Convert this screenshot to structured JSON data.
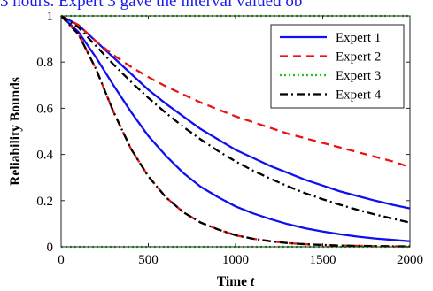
{
  "figure": {
    "clipped_caption": "3 hours. Expert 3 gave the interval valued ob"
  },
  "chart_data": {
    "type": "line",
    "xlabel": "Time t",
    "xlabel_parts": [
      "Time ",
      "t"
    ],
    "ylabel": "Reliability Bounds",
    "xlim": [
      0,
      2000
    ],
    "ylim": [
      0,
      1
    ],
    "xticks": [
      0,
      500,
      1000,
      1500,
      2000
    ],
    "yticks": [
      0,
      0.2,
      0.4,
      0.6,
      0.8,
      1
    ],
    "xtick_labels": [
      "0",
      "500",
      "1000",
      "1500",
      "2000"
    ],
    "ytick_labels": [
      "0",
      "0.2",
      "0.4",
      "0.6",
      "0.8",
      "1"
    ],
    "grid": false,
    "legend_position": "top-right",
    "x": [
      0,
      100,
      200,
      300,
      400,
      500,
      600,
      700,
      800,
      900,
      1000,
      1100,
      1200,
      1300,
      1400,
      1500,
      1600,
      1700,
      1800,
      1900,
      2000
    ],
    "series": [
      {
        "name": "Expert 1",
        "color": "#1010ee",
        "dash": "solid",
        "bound": "upper",
        "values": [
          1.0,
          0.96,
          0.89,
          0.82,
          0.75,
          0.68,
          0.62,
          0.565,
          0.51,
          0.465,
          0.42,
          0.385,
          0.35,
          0.32,
          0.29,
          0.265,
          0.24,
          0.22,
          0.2,
          0.182,
          0.166
        ]
      },
      {
        "name": "Expert 1",
        "color": "#1010ee",
        "dash": "solid",
        "bound": "lower",
        "values": [
          1.0,
          0.93,
          0.82,
          0.7,
          0.585,
          0.48,
          0.395,
          0.32,
          0.26,
          0.215,
          0.175,
          0.145,
          0.12,
          0.098,
          0.08,
          0.066,
          0.054,
          0.044,
          0.036,
          0.03,
          0.024
        ]
      },
      {
        "name": "Expert 2",
        "color": "#ee1111",
        "dash": "dashed",
        "bound": "upper",
        "values": [
          1.0,
          0.96,
          0.89,
          0.83,
          0.78,
          0.735,
          0.695,
          0.66,
          0.625,
          0.595,
          0.565,
          0.54,
          0.515,
          0.49,
          0.47,
          0.45,
          0.43,
          0.41,
          0.39,
          0.37,
          0.345
        ]
      },
      {
        "name": "Expert 2",
        "color": "#ee1111",
        "dash": "dashed",
        "bound": "lower",
        "values": [
          1.0,
          0.92,
          0.77,
          0.585,
          0.425,
          0.305,
          0.215,
          0.15,
          0.105,
          0.075,
          0.05,
          0.035,
          0.024,
          0.016,
          0.011,
          0.008,
          0.005,
          0.004,
          0.003,
          0.002,
          0.0015
        ]
      },
      {
        "name": "Expert 3",
        "color": "#11cc11",
        "dash": "dotted",
        "bound": "upper",
        "values": [
          1,
          1,
          1,
          1,
          1,
          1,
          1,
          1,
          1,
          1,
          1,
          1,
          1,
          1,
          1,
          1,
          1,
          1,
          1,
          1,
          1
        ]
      },
      {
        "name": "Expert 3",
        "color": "#11cc11",
        "dash": "dotted",
        "bound": "lower",
        "values": [
          0,
          0,
          0,
          0,
          0,
          0,
          0,
          0,
          0,
          0,
          0,
          0,
          0,
          0,
          0,
          0,
          0,
          0,
          0,
          0,
          0
        ]
      },
      {
        "name": "Expert 4",
        "color": "#000000",
        "dash": "dashdot",
        "bound": "upper",
        "values": [
          1.0,
          0.95,
          0.87,
          0.79,
          0.715,
          0.645,
          0.58,
          0.52,
          0.465,
          0.415,
          0.37,
          0.33,
          0.295,
          0.262,
          0.232,
          0.206,
          0.182,
          0.16,
          0.14,
          0.122,
          0.105
        ]
      },
      {
        "name": "Expert 4",
        "color": "#000000",
        "dash": "dashdot",
        "bound": "lower",
        "values": [
          1.0,
          0.92,
          0.77,
          0.585,
          0.425,
          0.305,
          0.215,
          0.15,
          0.105,
          0.075,
          0.05,
          0.035,
          0.024,
          0.016,
          0.011,
          0.008,
          0.005,
          0.004,
          0.003,
          0.002,
          0.0015
        ]
      }
    ],
    "legend": [
      {
        "label": "Expert 1",
        "color": "#1010ee",
        "dash": "solid"
      },
      {
        "label": "Expert 2",
        "color": "#ee1111",
        "dash": "dashed"
      },
      {
        "label": "Expert 3",
        "color": "#11cc11",
        "dash": "dotted"
      },
      {
        "label": "Expert 4",
        "color": "#000000",
        "dash": "dashdot"
      }
    ]
  }
}
